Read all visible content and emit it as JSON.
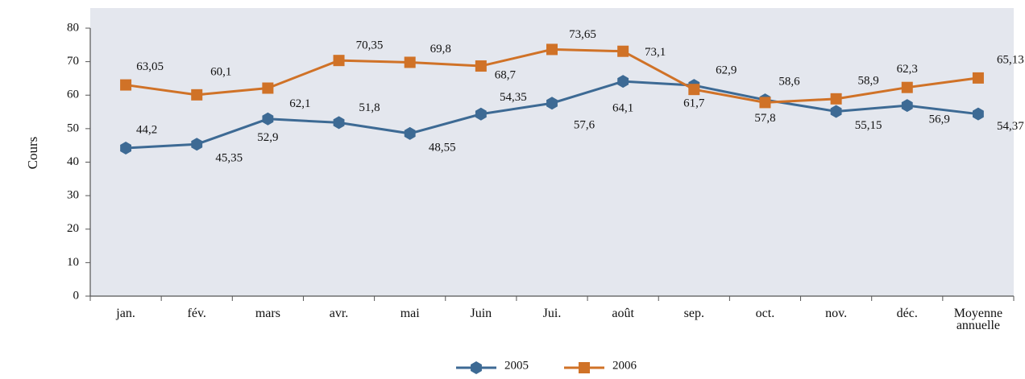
{
  "chart_data": {
    "type": "line",
    "y_label": "Cours",
    "categories": [
      "jan.",
      "fév.",
      "mars",
      "avr.",
      "mai",
      "Juin",
      "Jui.",
      "août",
      "sep.",
      "oct.",
      "nov.",
      "déc.",
      "Moyenne annuelle"
    ],
    "series": [
      {
        "name": "2005",
        "color": "#3d6a94",
        "marker": "hexagon",
        "values": [
          44.2,
          45.35,
          52.9,
          51.8,
          48.55,
          54.35,
          57.6,
          64.1,
          62.9,
          58.6,
          55.15,
          56.9,
          54.37
        ],
        "value_labels": [
          "44,2",
          "45,35",
          "52,9",
          "51,8",
          "48,55",
          "54,35",
          "57,6",
          "64,1",
          "62,9",
          "58,6",
          "55,15",
          "56,9",
          "54,37"
        ]
      },
      {
        "name": "2006",
        "color": "#d07227",
        "marker": "square",
        "values": [
          63.05,
          60.1,
          62.1,
          70.35,
          69.8,
          68.7,
          73.65,
          73.1,
          61.7,
          57.8,
          58.9,
          62.3,
          65.13
        ],
        "value_labels": [
          "63,05",
          "60,1",
          "62,1",
          "70,35",
          "69,8",
          "68,7",
          "73,65",
          "73,1",
          "61,7",
          "57,8",
          "58,9",
          "62,3",
          "65,13"
        ]
      }
    ],
    "ylim": [
      0,
      80
    ],
    "yticks": [
      0,
      10,
      20,
      30,
      40,
      50,
      60,
      70,
      80
    ],
    "legend": "bottom"
  }
}
